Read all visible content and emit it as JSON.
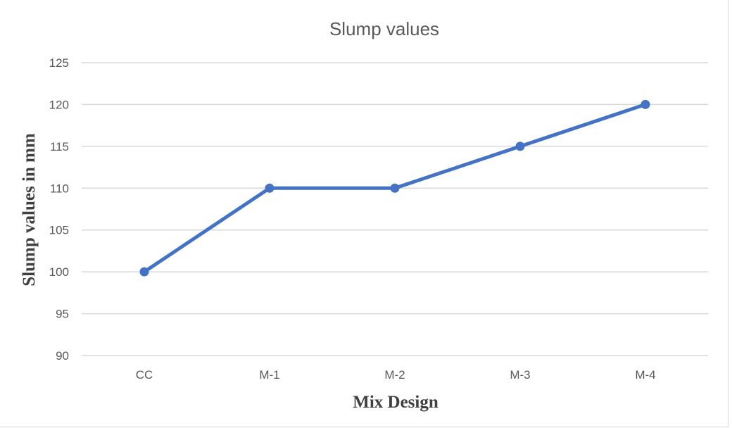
{
  "chart_data": {
    "type": "line",
    "title": "Slump values",
    "xlabel": "Mix Design",
    "ylabel": "Slump values in mm",
    "categories": [
      "CC",
      "M-1",
      "M-2",
      "M-3",
      "M-4"
    ],
    "series": [
      {
        "values": [
          100,
          110,
          110,
          115,
          120
        ],
        "color": "#4472c4"
      }
    ],
    "ylim": [
      90,
      125
    ],
    "yticks": [
      90,
      95,
      100,
      105,
      110,
      115,
      120,
      125
    ],
    "grid": true,
    "legend": "none"
  }
}
